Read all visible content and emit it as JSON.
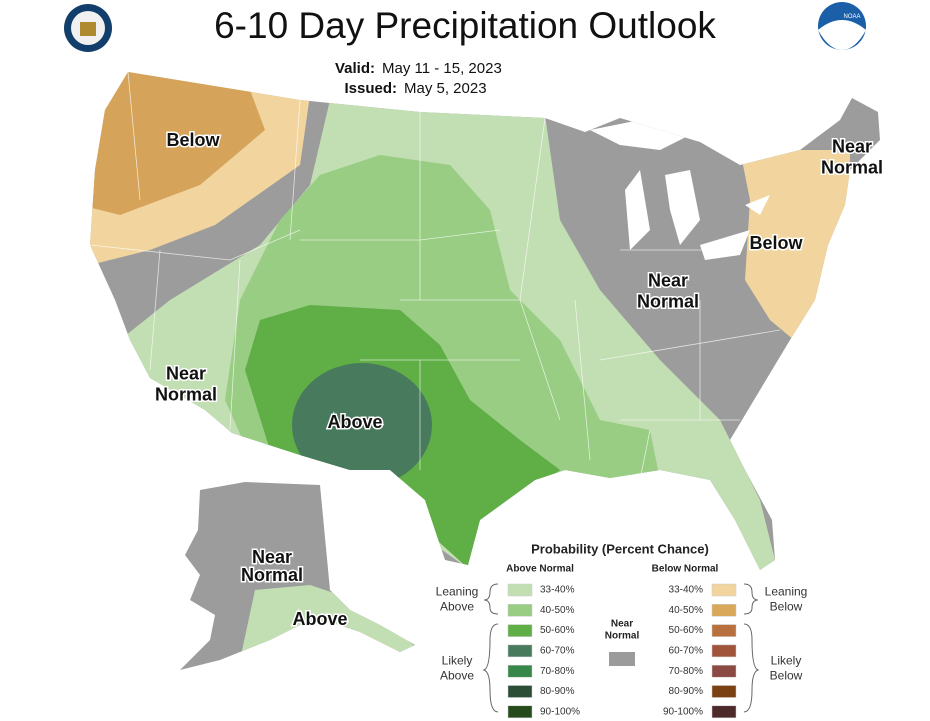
{
  "header": {
    "title": "6-10 Day Precipitation Outlook",
    "valid_label": "Valid:",
    "valid": "May 11 - 15, 2023",
    "issued_label": "Issued:",
    "issued": "May 5, 2023",
    "noaa_logo": "NOAA"
  },
  "map_labels": [
    {
      "lines": [
        "Below"
      ]
    },
    {
      "lines": [
        "Near",
        "Normal"
      ]
    },
    {
      "lines": [
        "Below"
      ]
    },
    {
      "lines": [
        "Near",
        "Normal"
      ]
    },
    {
      "lines": [
        "Near",
        "Normal"
      ]
    },
    {
      "lines": [
        "Above"
      ]
    },
    {
      "lines": [
        "Near",
        "Normal"
      ]
    },
    {
      "lines": [
        "Above"
      ]
    }
  ],
  "legend": {
    "title": "Probability (Percent Chance)",
    "above_header": "Above Normal",
    "below_header": "Below Normal",
    "near": {
      "lines": [
        "Near",
        "Normal"
      ],
      "color": "#9b9b9b"
    },
    "leaning_above": [
      "Leaning",
      "Above"
    ],
    "likely_above": [
      "Likely",
      "Above"
    ],
    "leaning_below": [
      "Leaning",
      "Below"
    ],
    "likely_below": [
      "Likely",
      "Below"
    ],
    "above": [
      {
        "range": "33-40%",
        "color": "#c2deb3"
      },
      {
        "range": "40-50%",
        "color": "#98cd83"
      },
      {
        "range": "50-60%",
        "color": "#5fae46"
      },
      {
        "range": "60-70%",
        "color": "#487a5e"
      },
      {
        "range": "70-80%",
        "color": "#35874a"
      },
      {
        "range": "80-90%",
        "color": "#2d4e36"
      },
      {
        "range": "90-100%",
        "color": "#254a1b"
      }
    ],
    "below": [
      {
        "range": "33-40%",
        "color": "#f2d59e"
      },
      {
        "range": "40-50%",
        "color": "#d9a85a"
      },
      {
        "range": "50-60%",
        "color": "#b8703f"
      },
      {
        "range": "60-70%",
        "color": "#a0553a"
      },
      {
        "range": "70-80%",
        "color": "#8a4a43"
      },
      {
        "range": "80-90%",
        "color": "#7a4114"
      },
      {
        "range": "90-100%",
        "color": "#4c2a2a"
      }
    ]
  }
}
